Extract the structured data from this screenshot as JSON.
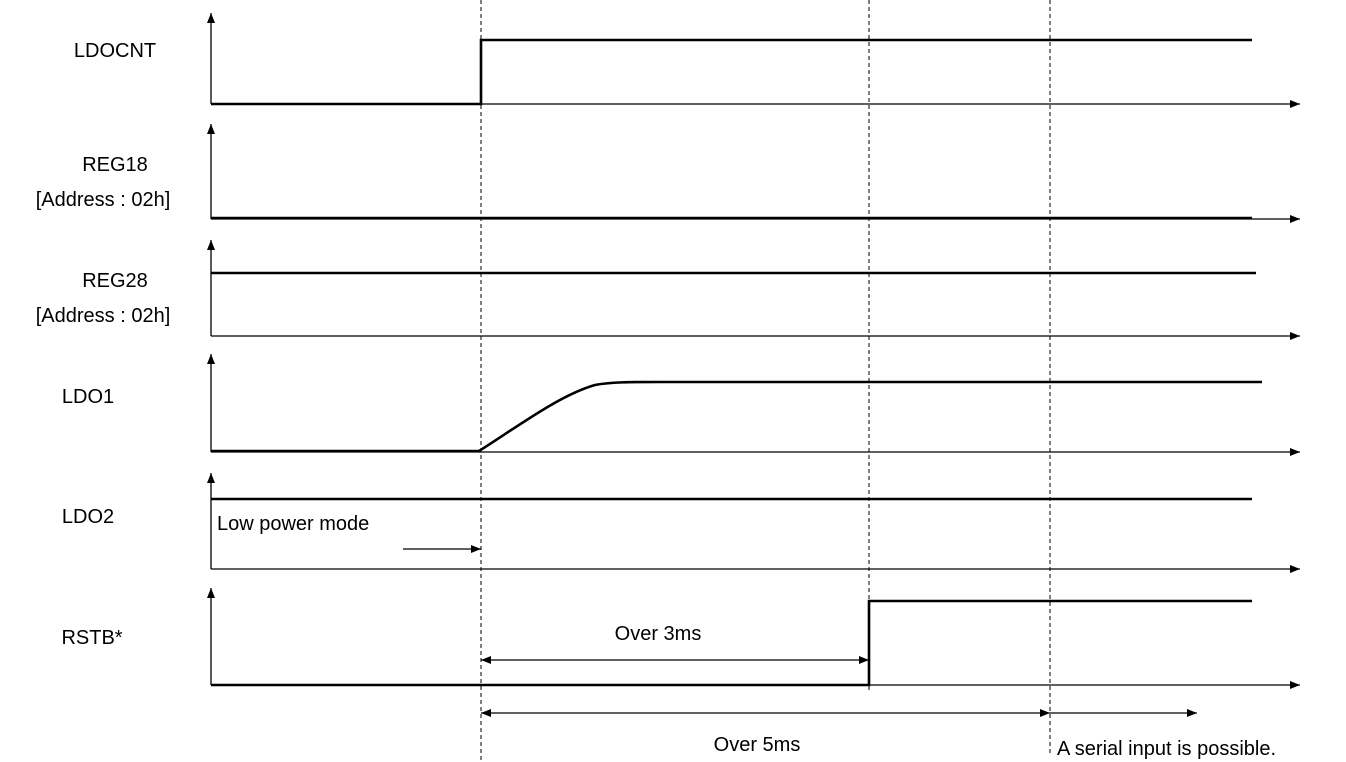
{
  "signals": [
    {
      "name": "LDOCNT",
      "sublabel": ""
    },
    {
      "name": "REG18",
      "sublabel": "[Address : 02h]"
    },
    {
      "name": "REG28",
      "sublabel": "[Address : 02h]"
    },
    {
      "name": "LDO1",
      "sublabel": ""
    },
    {
      "name": "LDO2",
      "sublabel": ""
    },
    {
      "name": "RSTB*",
      "sublabel": ""
    }
  ],
  "annotations": {
    "low_power_mode": "Low power mode",
    "over_3ms": "Over 3ms",
    "over_5ms": "Over 5ms",
    "serial_input": "A serial input is possible."
  }
}
